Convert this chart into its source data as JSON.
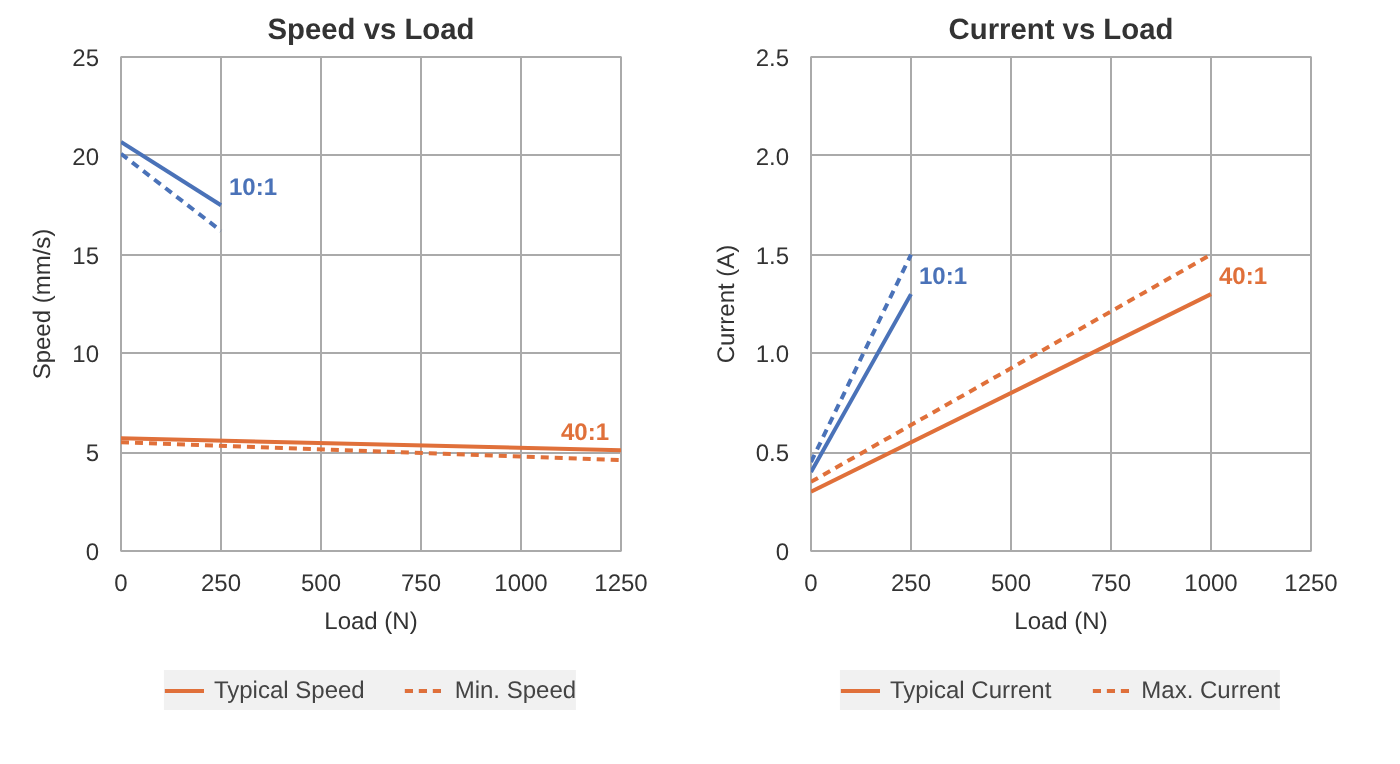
{
  "chart_data": [
    {
      "type": "line",
      "title": "Speed vs Load",
      "xlabel": "Load (N)",
      "ylabel": "Speed (mm/s)",
      "xlim": [
        0,
        1250
      ],
      "xticks": [
        0,
        250,
        500,
        750,
        1000,
        1250
      ],
      "ylim": [
        0,
        25
      ],
      "yticks": [
        0,
        5,
        10,
        15,
        20,
        25
      ],
      "grid": true,
      "legend": "bottom",
      "marker": "none",
      "series": [
        {
          "name": "Typical Speed",
          "color": "#4a72b8",
          "x": [
            0,
            250
          ],
          "values": [
            20.7,
            17.5
          ],
          "line_style": "solid"
        },
        {
          "color": "#e0703a",
          "x": [
            0,
            1250
          ],
          "values": [
            5.7,
            5.1
          ],
          "line_style": "solid"
        },
        {
          "name": "Min. Speed",
          "color": "#4a72b8",
          "x": [
            0,
            250
          ],
          "values": [
            20.1,
            16.2
          ],
          "line_style": "dashed"
        },
        {
          "color": "#e0703a",
          "x": [
            0,
            1250
          ],
          "values": [
            5.5,
            4.6
          ],
          "line_style": "dashed"
        }
      ],
      "annotations": [
        {
          "text": "10:1",
          "x": 250,
          "y": 17.5
        },
        {
          "text": "40:1",
          "x": 1250,
          "y": 5.1
        }
      ]
    },
    {
      "type": "line",
      "title": "Current vs Load",
      "xlabel": "Load (N)",
      "ylabel": "Current (A)",
      "xlim": [
        0,
        1250
      ],
      "xticks": [
        0,
        250,
        500,
        750,
        1000,
        1250
      ],
      "ylim": [
        0,
        2.5
      ],
      "yticks": [
        0,
        0.5,
        {
          "value": 1,
          "label": "1.0"
        },
        1.5,
        {
          "value": 2,
          "label": "2.0"
        },
        2.5
      ],
      "grid": true,
      "legend": "bottom",
      "marker": "none",
      "series": [
        {
          "name": "Typical Current",
          "color": "#4a72b8",
          "x": [
            0,
            250
          ],
          "values": [
            0.4,
            1.3
          ],
          "line_style": "solid"
        },
        {
          "color": "#e0703a",
          "x": [
            0,
            1000
          ],
          "values": [
            0.3,
            1.3
          ],
          "line_style": "solid"
        },
        {
          "name": "Max. Current",
          "color": "#4a72b8",
          "x": [
            0,
            250
          ],
          "values": [
            0.45,
            1.5
          ],
          "line_style": "dashed"
        },
        {
          "color": "#e0703a",
          "x": [
            0,
            1000
          ],
          "values": [
            0.35,
            1.5
          ],
          "line_style": "dashed"
        }
      ],
      "annotations": [
        {
          "text": "10:1",
          "x": 250,
          "y": 1.3
        },
        {
          "text": "40:1",
          "x": 1000,
          "y": 1.3
        }
      ]
    }
  ]
}
